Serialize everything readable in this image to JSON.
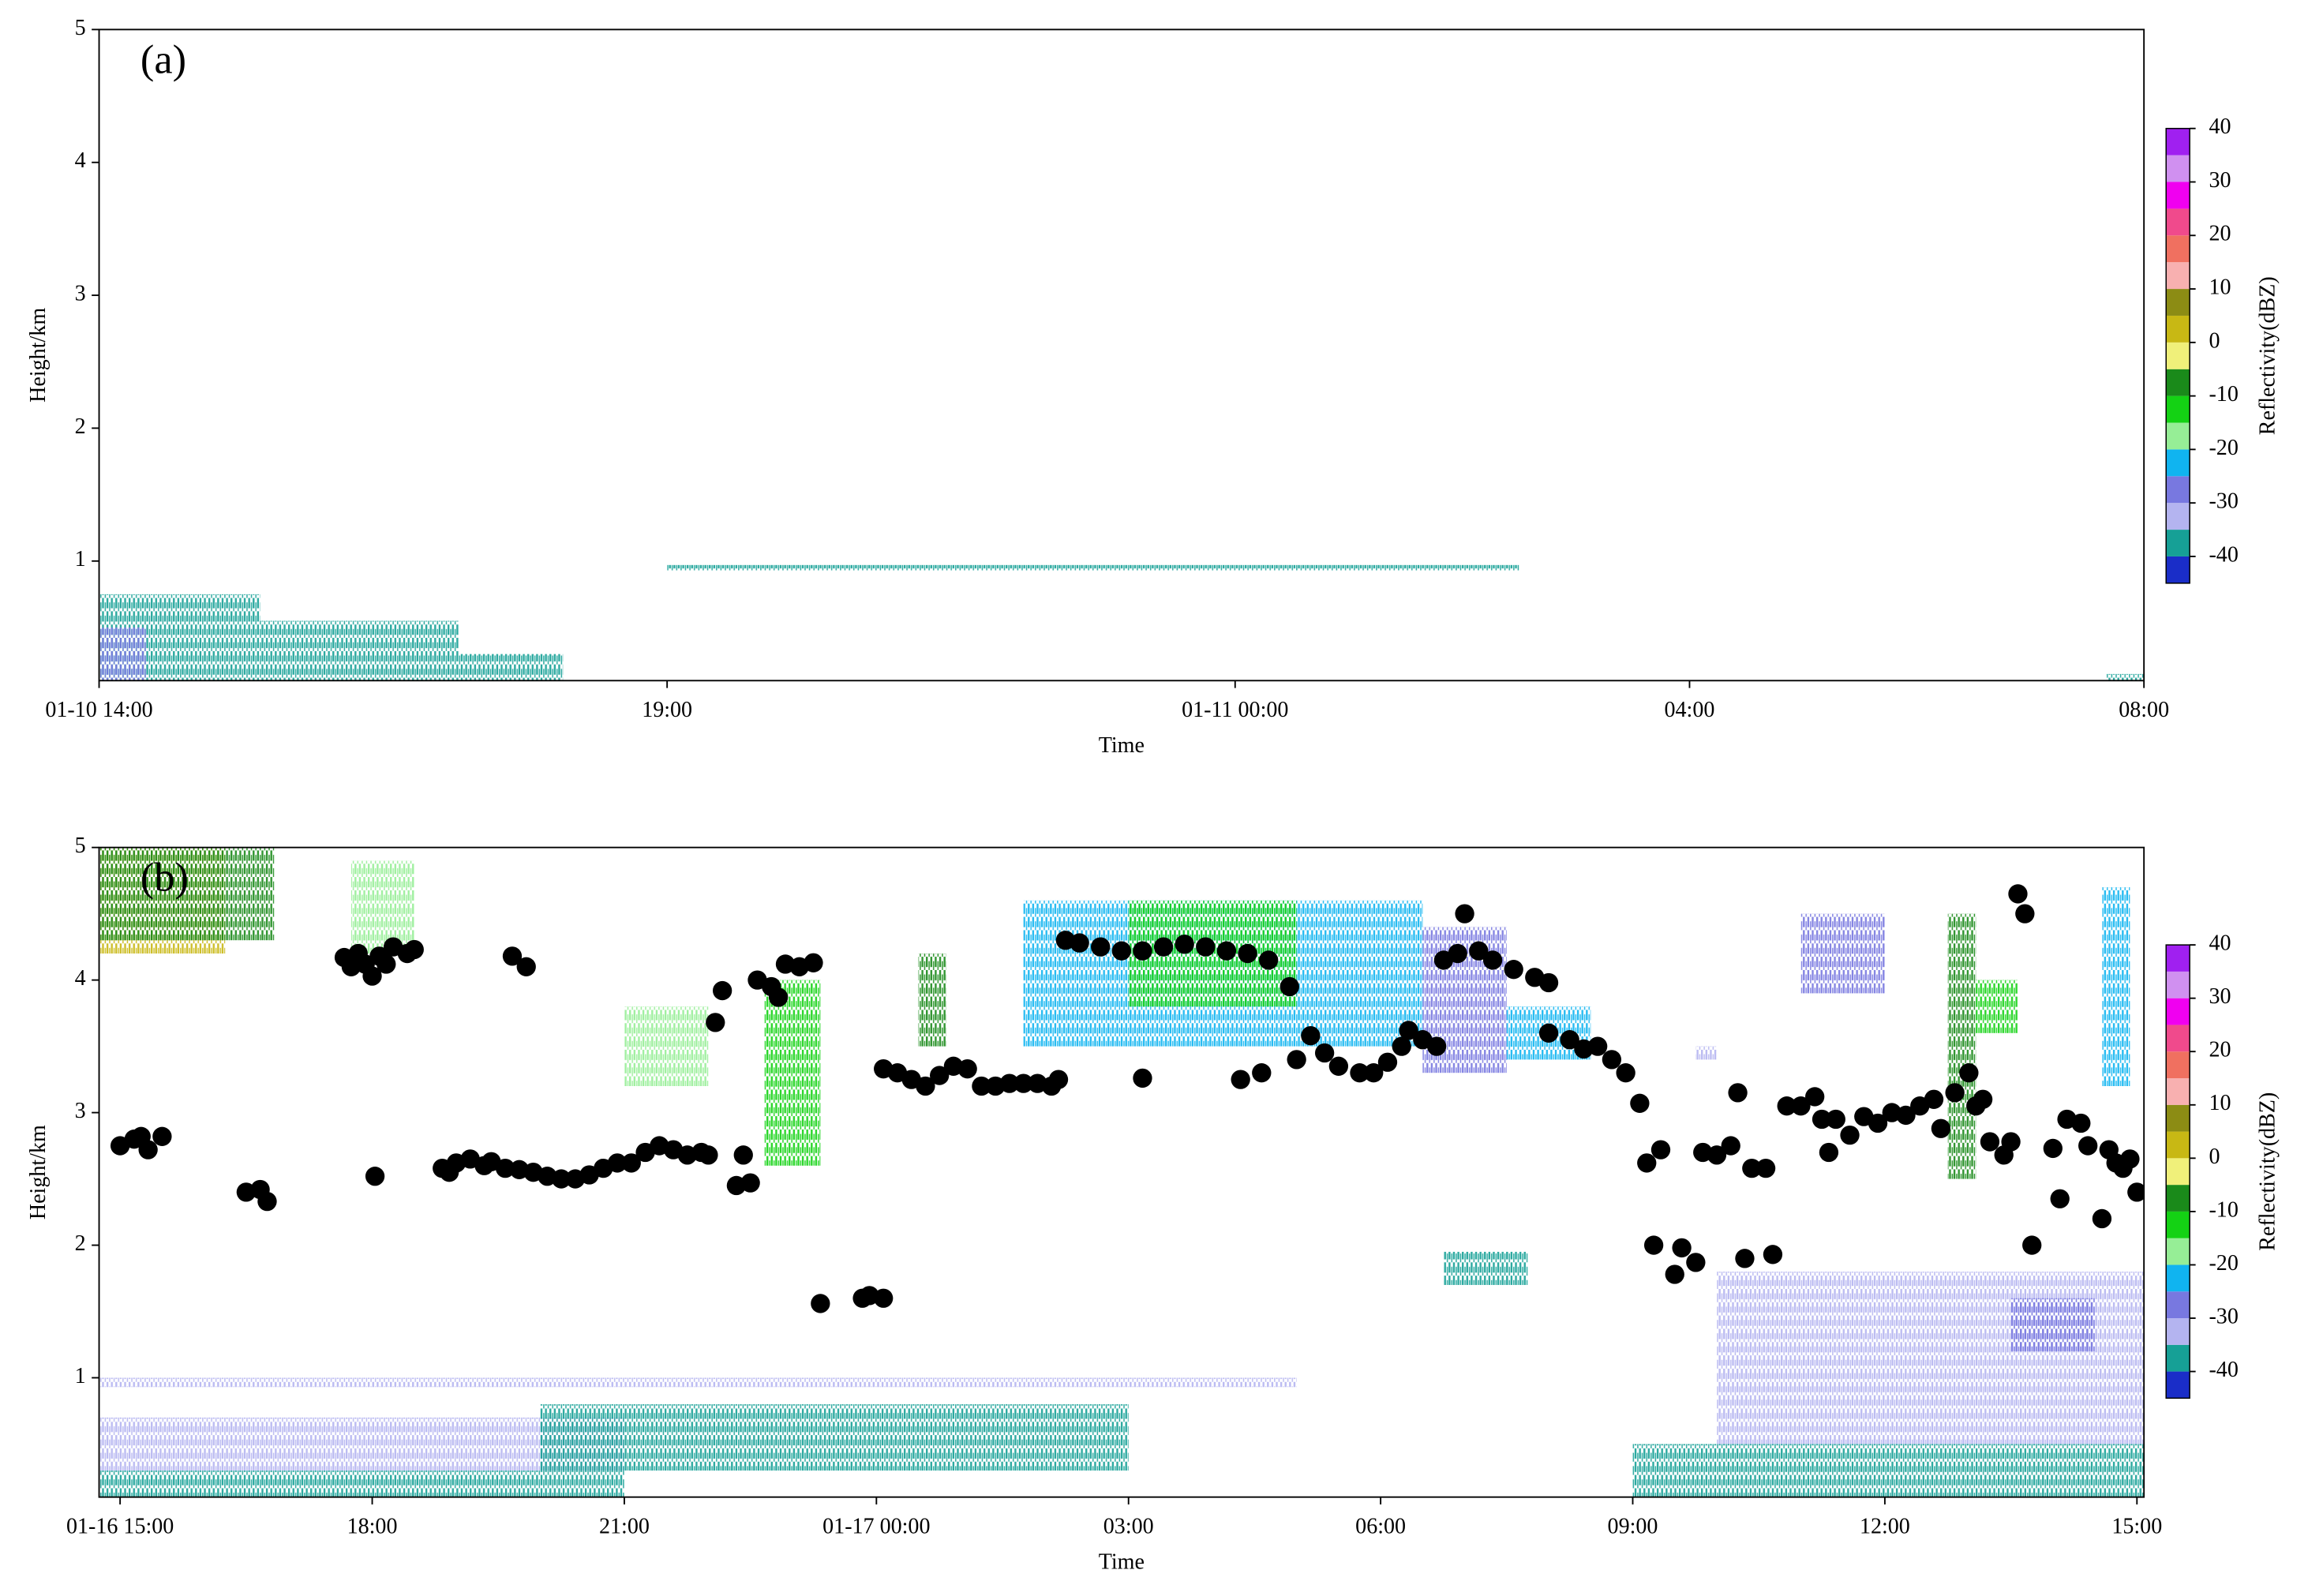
{
  "chart_data": [
    {
      "type": "radar-echo",
      "annotation": "(a)",
      "x_label": "Time",
      "y_label": "Height/km",
      "xlim": [
        "01-10 14:00",
        "01-11 08:00"
      ],
      "xticks": [
        {
          "value": "01-10 14:00",
          "label": "01-10 14:00"
        },
        {
          "value": "01-10 19:00",
          "label": "19:00"
        },
        {
          "value": "01-11 00:00",
          "label": "01-11 00:00"
        },
        {
          "value": "01-11 04:00",
          "label": "04:00"
        },
        {
          "value": "01-11 08:00",
          "label": "08:00"
        }
      ],
      "ylim": [
        0.1,
        5
      ],
      "yticks": [
        1,
        2,
        3,
        4,
        5
      ],
      "colorbar": {
        "label": "Reflectivity(dBZ)",
        "levels": [
          -45,
          -40,
          -35,
          -30,
          -25,
          -20,
          -15,
          -10,
          -5,
          0,
          5,
          10,
          15,
          20,
          25,
          30,
          35,
          40
        ],
        "colors": [
          "#1a2dc8",
          "#16a096",
          "#b4b4f0",
          "#7878e0",
          "#10b4f0",
          "#96ee96",
          "#14d214",
          "#1a8a1a",
          "#f0f07a",
          "#c8b814",
          "#8c8c14",
          "#f8b0b0",
          "#f07060",
          "#f04a8c",
          "#f000f0",
          "#d090f0",
          "#a020f0"
        ],
        "ticks": [
          -40,
          -30,
          -20,
          -10,
          0,
          10,
          20,
          30,
          40
        ]
      },
      "echoes": [
        {
          "x0": "01-10 14:00",
          "x1": "01-10 15:25",
          "y0": 0.1,
          "y1": 0.75,
          "dbz": -40
        },
        {
          "x0": "01-10 14:00",
          "x1": "01-10 14:25",
          "y0": 0.1,
          "y1": 0.5,
          "dbz": -30
        },
        {
          "x0": "01-10 15:25",
          "x1": "01-10 17:10",
          "y0": 0.1,
          "y1": 0.55,
          "dbz": -40
        },
        {
          "x0": "01-10 17:10",
          "x1": "01-10 18:05",
          "y0": 0.1,
          "y1": 0.3,
          "dbz": -40
        },
        {
          "x0": "01-10 19:00",
          "x1": "01-11 02:30",
          "y0": 0.93,
          "y1": 0.97,
          "dbz": -40
        },
        {
          "x0": "01-11 07:40",
          "x1": "01-11 08:00",
          "y0": 0.1,
          "y1": 0.15,
          "dbz": -40
        }
      ]
    },
    {
      "type": "radar-echo",
      "annotation": "(b)",
      "x_label": "Time",
      "y_label": "Height/km",
      "xlim": [
        "01-16 14:45",
        "01-17 15:05"
      ],
      "xticks": [
        {
          "value": "01-16 15:00",
          "label": "01-16 15:00"
        },
        {
          "value": "01-16 18:00",
          "label": "18:00"
        },
        {
          "value": "01-16 21:00",
          "label": "21:00"
        },
        {
          "value": "01-17 00:00",
          "label": "01-17 00:00"
        },
        {
          "value": "01-17 03:00",
          "label": "03:00"
        },
        {
          "value": "01-17 06:00",
          "label": "06:00"
        },
        {
          "value": "01-17 09:00",
          "label": "09:00"
        },
        {
          "value": "01-17 12:00",
          "label": "12:00"
        },
        {
          "value": "01-17 15:00",
          "label": "15:00"
        }
      ],
      "ylim": [
        0.1,
        5
      ],
      "yticks": [
        1,
        2,
        3,
        4,
        5
      ],
      "colorbar": {
        "label": "Reflectivity(dBZ)",
        "levels": [
          -45,
          -40,
          -35,
          -30,
          -25,
          -20,
          -15,
          -10,
          -5,
          0,
          5,
          10,
          15,
          20,
          25,
          30,
          35,
          40
        ],
        "colors": [
          "#1a2dc8",
          "#16a096",
          "#b4b4f0",
          "#7878e0",
          "#10b4f0",
          "#96ee96",
          "#14d214",
          "#1a8a1a",
          "#f0f07a",
          "#c8b814",
          "#8c8c14",
          "#f8b0b0",
          "#f07060",
          "#f04a8c",
          "#f000f0",
          "#d090f0",
          "#a020f0"
        ],
        "ticks": [
          -40,
          -30,
          -20,
          -10,
          0,
          10,
          20,
          30,
          40
        ]
      },
      "echoes": [
        {
          "x0": "01-16 14:45",
          "x1": "01-16 16:15",
          "y0": 4.2,
          "y1": 5,
          "dbz": 0
        },
        {
          "x0": "01-16 14:45",
          "x1": "01-16 16:15",
          "y0": 4.3,
          "y1": 5,
          "dbz": -10
        },
        {
          "x0": "01-16 16:15",
          "x1": "01-16 16:50",
          "y0": 4.3,
          "y1": 5,
          "dbz": -10
        },
        {
          "x0": "01-16 17:45",
          "x1": "01-16 18:30",
          "y0": 4.2,
          "y1": 4.9,
          "dbz": -20
        },
        {
          "x0": "01-16 21:00",
          "x1": "01-16 22:00",
          "y0": 3.2,
          "y1": 3.8,
          "dbz": -20
        },
        {
          "x0": "01-16 22:40",
          "x1": "01-16 23:20",
          "y0": 2.6,
          "y1": 4.0,
          "dbz": -15
        },
        {
          "x0": "01-17 00:30",
          "x1": "01-17 00:50",
          "y0": 3.5,
          "y1": 4.2,
          "dbz": -10
        },
        {
          "x0": "01-17 01:45",
          "x1": "01-17 06:30",
          "y0": 3.5,
          "y1": 4.6,
          "dbz": -25
        },
        {
          "x0": "01-17 03:00",
          "x1": "01-17 05:00",
          "y0": 3.8,
          "y1": 4.6,
          "dbz": -15
        },
        {
          "x0": "01-17 06:30",
          "x1": "01-17 07:30",
          "y0": 3.3,
          "y1": 4.4,
          "dbz": -30
        },
        {
          "x0": "01-17 07:30",
          "x1": "01-17 08:30",
          "y0": 3.4,
          "y1": 3.8,
          "dbz": -25
        },
        {
          "x0": "01-17 09:45",
          "x1": "01-17 10:00",
          "y0": 3.4,
          "y1": 3.5,
          "dbz": -35
        },
        {
          "x0": "01-17 11:00",
          "x1": "01-17 12:00",
          "y0": 3.9,
          "y1": 4.5,
          "dbz": -30
        },
        {
          "x0": "01-17 12:45",
          "x1": "01-17 13:05",
          "y0": 2.5,
          "y1": 4.5,
          "dbz": -10
        },
        {
          "x0": "01-17 13:05",
          "x1": "01-17 13:35",
          "y0": 3.6,
          "y1": 4.0,
          "dbz": -15
        },
        {
          "x0": "01-17 14:35",
          "x1": "01-17 14:55",
          "y0": 3.2,
          "y1": 4.7,
          "dbz": -25
        },
        {
          "x0": "01-17 06:45",
          "x1": "01-17 07:45",
          "y0": 1.7,
          "y1": 1.95,
          "dbz": -40
        },
        {
          "x0": "01-16 14:45",
          "x1": "01-16 21:00",
          "y0": 0.1,
          "y1": 0.3,
          "dbz": -40
        },
        {
          "x0": "01-16 14:45",
          "x1": "01-16 21:00",
          "y0": 0.3,
          "y1": 0.7,
          "dbz": -35
        },
        {
          "x0": "01-16 20:00",
          "x1": "01-17 03:00",
          "y0": 0.3,
          "y1": 0.8,
          "dbz": -40
        },
        {
          "x0": "01-16 14:45",
          "x1": "01-17 05:00",
          "y0": 0.93,
          "y1": 1.0,
          "dbz": -35
        },
        {
          "x0": "01-17 09:00",
          "x1": "01-17 15:05",
          "y0": 0.1,
          "y1": 0.5,
          "dbz": -40
        },
        {
          "x0": "01-17 10:00",
          "x1": "01-17 15:05",
          "y0": 0.5,
          "y1": 1.8,
          "dbz": -35
        },
        {
          "x0": "01-17 13:30",
          "x1": "01-17 14:30",
          "y0": 1.2,
          "y1": 1.6,
          "dbz": -30
        }
      ],
      "points": {
        "color": "#000000",
        "x": [
          "01-16 15:00",
          "01-16 15:10",
          "01-16 15:15",
          "01-16 15:20",
          "01-16 15:30",
          "01-16 16:30",
          "01-16 16:40",
          "01-16 16:45",
          "01-16 17:40",
          "01-16 17:45",
          "01-16 17:50",
          "01-16 17:55",
          "01-16 18:00",
          "01-16 18:02",
          "01-16 18:05",
          "01-16 18:10",
          "01-16 18:15",
          "01-16 18:25",
          "01-16 18:30",
          "01-16 18:50",
          "01-16 18:55",
          "01-16 19:00",
          "01-16 19:10",
          "01-16 19:20",
          "01-16 19:25",
          "01-16 19:35",
          "01-16 19:40",
          "01-16 19:45",
          "01-16 19:50",
          "01-16 19:55",
          "01-16 20:05",
          "01-16 20:15",
          "01-16 20:25",
          "01-16 20:35",
          "01-16 20:45",
          "01-16 20:55",
          "01-16 21:05",
          "01-16 21:15",
          "01-16 21:25",
          "01-16 21:35",
          "01-16 21:45",
          "01-16 21:55",
          "01-16 22:00",
          "01-16 22:05",
          "01-16 22:10",
          "01-16 22:20",
          "01-16 22:25",
          "01-16 22:30",
          "01-16 22:35",
          "01-16 22:45",
          "01-16 22:50",
          "01-16 22:55",
          "01-16 23:05",
          "01-16 23:15",
          "01-16 23:20",
          "01-16 23:50",
          "01-16 23:55",
          "01-17 00:05",
          "01-17 00:05",
          "01-17 00:15",
          "01-17 00:25",
          "01-17 00:35",
          "01-17 00:45",
          "01-17 00:55",
          "01-17 01:05",
          "01-17 01:15",
          "01-17 01:25",
          "01-17 01:35",
          "01-17 01:45",
          "01-17 01:55",
          "01-17 02:05",
          "01-17 02:10",
          "01-17 02:15",
          "01-17 02:25",
          "01-17 02:40",
          "01-17 02:55",
          "01-17 03:10",
          "01-17 03:10",
          "01-17 03:25",
          "01-17 03:40",
          "01-17 03:55",
          "01-17 04:10",
          "01-17 04:20",
          "01-17 04:25",
          "01-17 04:35",
          "01-17 04:40",
          "01-17 04:55",
          "01-17 05:00",
          "01-17 05:10",
          "01-17 05:20",
          "01-17 05:30",
          "01-17 05:45",
          "01-17 05:55",
          "01-17 06:05",
          "01-17 06:15",
          "01-17 06:20",
          "01-17 06:30",
          "01-17 06:40",
          "01-17 06:45",
          "01-17 06:55",
          "01-17 07:00",
          "01-17 07:10",
          "01-17 07:20",
          "01-17 07:35",
          "01-17 07:50",
          "01-17 08:00",
          "01-17 08:00",
          "01-17 08:15",
          "01-17 08:25",
          "01-17 08:35",
          "01-17 08:45",
          "01-17 08:55",
          "01-17 09:05",
          "01-17 09:10",
          "01-17 09:15",
          "01-17 09:20",
          "01-17 09:30",
          "01-17 09:35",
          "01-17 09:45",
          "01-17 09:50",
          "01-17 10:00",
          "01-17 10:10",
          "01-17 10:15",
          "01-17 10:20",
          "01-17 10:25",
          "01-17 10:35",
          "01-17 10:40",
          "01-17 10:50",
          "01-17 11:00",
          "01-17 11:10",
          "01-17 11:15",
          "01-17 11:20",
          "01-17 11:25",
          "01-17 11:35",
          "01-17 11:45",
          "01-17 11:55",
          "01-17 12:05",
          "01-17 12:15",
          "01-17 12:25",
          "01-17 12:35",
          "01-17 12:40",
          "01-17 12:50",
          "01-17 13:00",
          "01-17 13:05",
          "01-17 13:10",
          "01-17 13:15",
          "01-17 13:25",
          "01-17 13:30",
          "01-17 13:35",
          "01-17 13:40",
          "01-17 13:45",
          "01-17 14:00",
          "01-17 14:05",
          "01-17 14:10",
          "01-17 14:20",
          "01-17 14:25",
          "01-17 14:35",
          "01-17 14:40",
          "01-17 14:45",
          "01-17 14:50",
          "01-17 14:55",
          "01-17 15:00"
        ],
        "y": [
          2.75,
          2.8,
          2.82,
          2.72,
          2.82,
          2.4,
          2.42,
          2.33,
          4.17,
          4.1,
          4.2,
          4.12,
          4.03,
          2.52,
          4.18,
          4.12,
          4.25,
          4.2,
          4.23,
          2.58,
          2.55,
          2.62,
          2.65,
          2.6,
          2.63,
          2.58,
          4.18,
          2.57,
          4.1,
          2.55,
          2.52,
          2.5,
          2.5,
          2.53,
          2.58,
          2.62,
          2.62,
          2.7,
          2.75,
          2.72,
          2.68,
          2.7,
          2.68,
          3.68,
          3.92,
          2.45,
          2.68,
          2.47,
          4.0,
          3.95,
          3.87,
          4.12,
          4.1,
          4.13,
          1.56,
          1.6,
          1.62,
          1.6,
          3.33,
          3.3,
          3.25,
          3.2,
          3.28,
          3.35,
          3.33,
          3.2,
          3.2,
          3.22,
          3.22,
          3.22,
          3.2,
          3.25,
          4.3,
          4.28,
          4.25,
          4.22,
          4.22,
          3.26,
          4.25,
          4.27,
          4.25,
          4.22,
          3.25,
          4.2,
          3.3,
          4.15,
          3.95,
          3.4,
          3.58,
          3.45,
          3.35,
          3.3,
          3.3,
          3.38,
          3.5,
          3.62,
          3.55,
          3.5,
          4.15,
          4.2,
          4.5,
          4.22,
          4.15,
          4.08,
          4.02,
          3.98,
          3.6,
          3.55,
          3.48,
          3.5,
          3.4,
          3.3,
          3.07,
          2.62,
          2.0,
          2.72,
          1.78,
          1.98,
          1.87,
          2.7,
          2.68,
          2.75,
          3.15,
          1.9,
          2.58,
          2.58,
          1.93,
          3.05,
          3.05,
          3.12,
          2.95,
          2.7,
          2.95,
          2.83,
          2.97,
          2.92,
          3.0,
          2.98,
          3.05,
          3.1,
          2.88,
          3.15,
          3.3,
          3.05,
          3.1,
          2.78,
          2.68,
          2.78,
          4.65,
          4.5,
          2.0,
          2.73,
          2.35,
          2.95,
          2.92,
          2.75,
          2.2,
          2.72,
          2.62,
          2.58,
          2.65,
          2.4
        ]
      }
    }
  ]
}
